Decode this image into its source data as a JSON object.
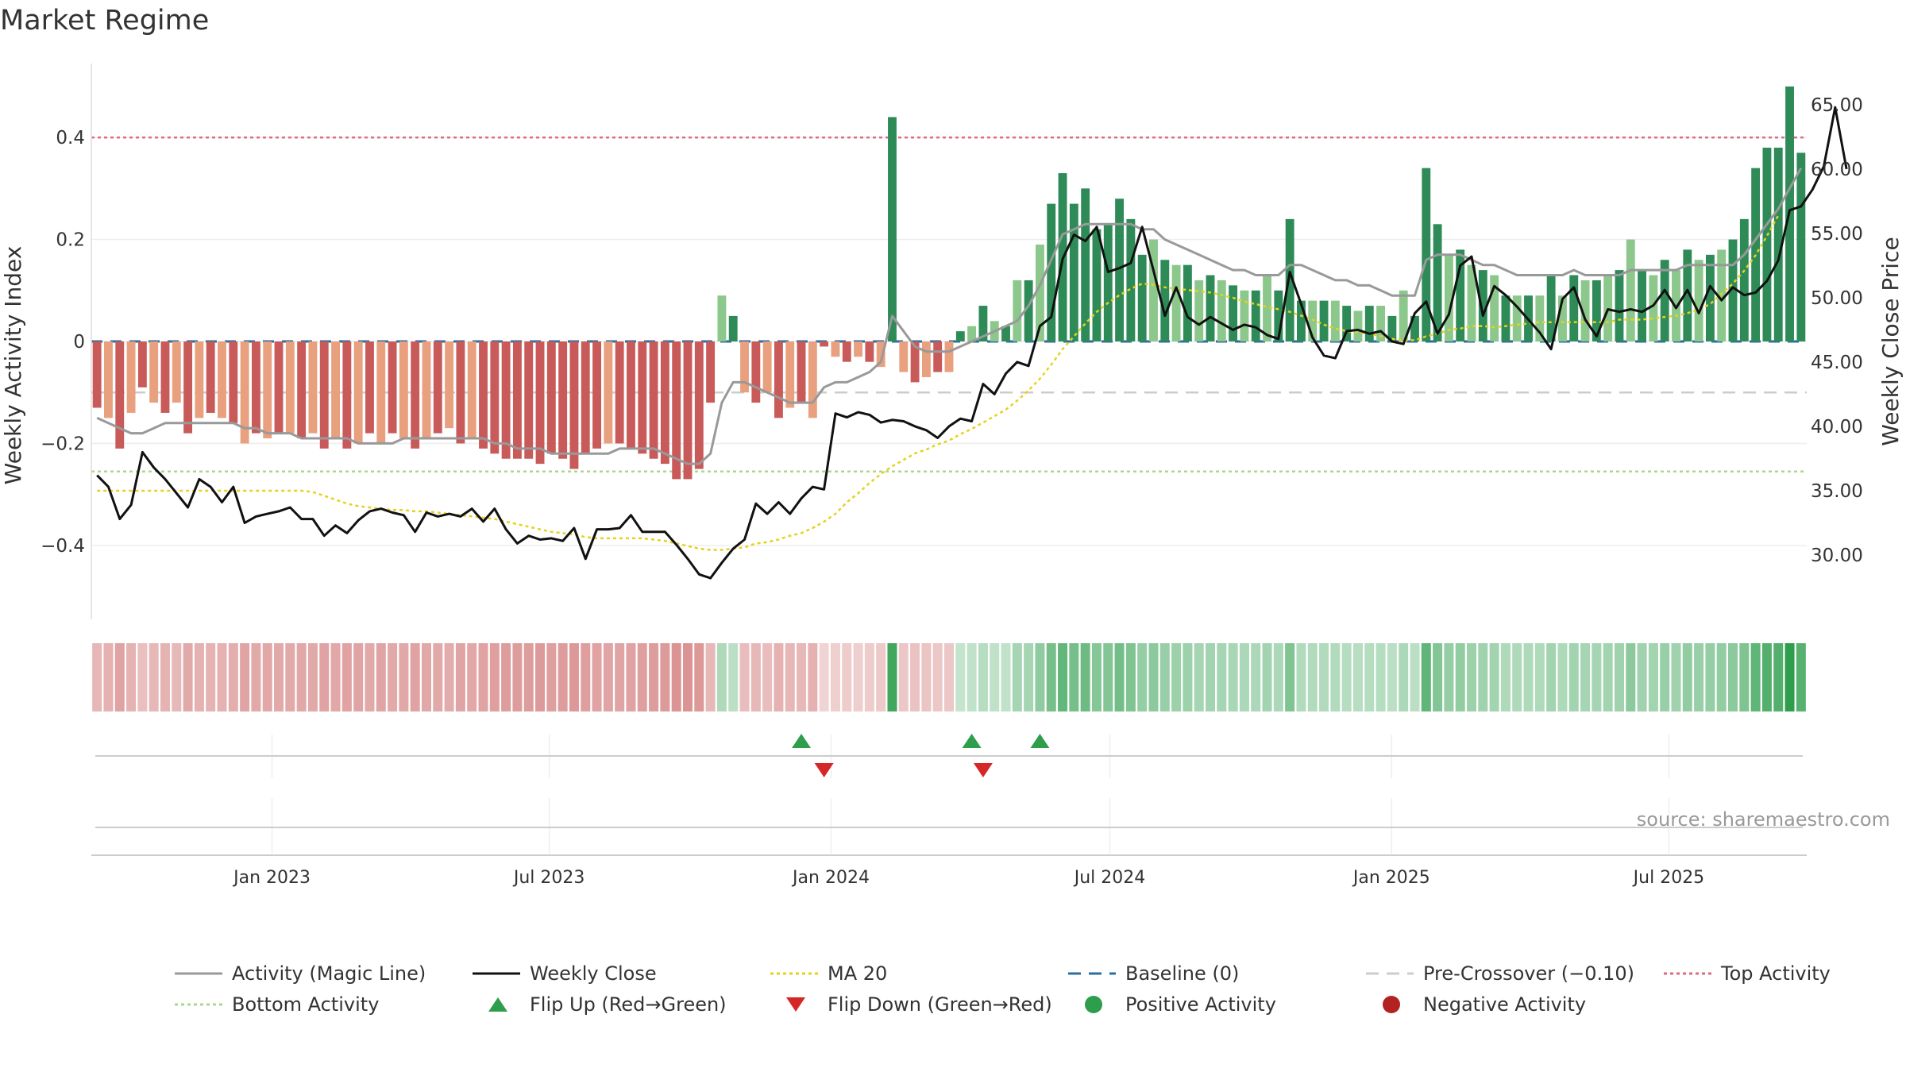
{
  "chart_data": {
    "type": "bar",
    "title": "Market Regime",
    "source": "source: sharemaestro.com",
    "ylabel": "Weekly Activity Index",
    "y2label": "Weekly Close Price",
    "ylim": [
      -0.545,
      0.545
    ],
    "y2lim": [
      25.0,
      68.2
    ],
    "yticks": [
      "−0.4",
      "−0.2",
      "0",
      "0.2",
      "0.4"
    ],
    "yticks_values": [
      -0.4,
      -0.2,
      0,
      0.2,
      0.4
    ],
    "y2ticks": [
      "30.00",
      "35.00",
      "40.00",
      "45.00",
      "50.00",
      "55.00",
      "60.00",
      "65.00"
    ],
    "y2ticks_values": [
      30,
      35,
      40,
      45,
      50,
      55,
      60,
      65
    ],
    "x_start": "2022-09-05",
    "x_end": "2025-09-29",
    "xticks": [
      {
        "date": "2023-01-01",
        "label": "Jan 2023"
      },
      {
        "date": "2023-07-01",
        "label": "Jul 2023"
      },
      {
        "date": "2024-01-01",
        "label": "Jan 2024"
      },
      {
        "date": "2024-07-01",
        "label": "Jul 2024"
      },
      {
        "date": "2025-01-01",
        "label": "Jan 2025"
      },
      {
        "date": "2025-07-01",
        "label": "Jul 2025"
      }
    ],
    "reference_lines": {
      "baseline": 0,
      "pre_crossover": -0.1,
      "top": 0.4,
      "bottom": -0.255
    },
    "activity": [
      -0.13,
      -0.15,
      -0.21,
      -0.14,
      -0.09,
      -0.12,
      -0.14,
      -0.12,
      -0.18,
      -0.15,
      -0.14,
      -0.15,
      -0.16,
      -0.2,
      -0.18,
      -0.19,
      -0.18,
      -0.18,
      -0.19,
      -0.18,
      -0.21,
      -0.19,
      -0.21,
      -0.2,
      -0.18,
      -0.2,
      -0.18,
      -0.19,
      -0.21,
      -0.19,
      -0.18,
      -0.17,
      -0.2,
      -0.19,
      -0.21,
      -0.22,
      -0.23,
      -0.23,
      -0.23,
      -0.24,
      -0.22,
      -0.23,
      -0.25,
      -0.22,
      -0.21,
      -0.2,
      -0.2,
      -0.21,
      -0.22,
      -0.23,
      -0.24,
      -0.27,
      -0.27,
      -0.25,
      -0.12,
      0.09,
      0.05,
      -0.1,
      -0.12,
      -0.1,
      -0.15,
      -0.13,
      -0.12,
      -0.15,
      -0.01,
      -0.03,
      -0.04,
      -0.03,
      -0.04,
      -0.05,
      0.44,
      -0.06,
      -0.08,
      -0.07,
      -0.06,
      -0.06,
      0.02,
      0.03,
      0.07,
      0.04,
      0.03,
      0.12,
      0.12,
      0.19,
      0.27,
      0.33,
      0.27,
      0.3,
      0.22,
      0.23,
      0.28,
      0.24,
      0.17,
      0.2,
      0.16,
      0.15,
      0.15,
      0.12,
      0.13,
      0.12,
      0.11,
      0.1,
      0.1,
      0.13,
      0.1,
      0.24,
      0.08,
      0.08,
      0.08,
      0.08,
      0.07,
      0.06,
      0.07,
      0.07,
      0.05,
      0.1,
      0.05,
      0.34,
      0.23,
      0.17,
      0.18,
      0.15,
      0.14,
      0.13,
      0.09,
      0.09,
      0.09,
      0.09,
      0.13,
      0.09,
      0.13,
      0.12,
      0.12,
      0.13,
      0.14,
      0.2,
      0.14,
      0.13,
      0.16,
      0.14,
      0.18,
      0.16,
      0.17,
      0.18,
      0.2,
      0.24,
      0.34,
      0.38,
      0.38,
      0.5,
      0.37
    ],
    "close": [
      36.2,
      35.3,
      32.8,
      33.9,
      38.0,
      36.8,
      35.9,
      34.8,
      33.7,
      35.9,
      35.3,
      34.1,
      35.3,
      32.5,
      33.0,
      33.2,
      33.4,
      33.7,
      32.8,
      32.8,
      31.5,
      32.3,
      31.7,
      32.7,
      33.4,
      33.6,
      33.3,
      33.1,
      31.8,
      33.3,
      33.0,
      33.2,
      33.0,
      33.6,
      32.6,
      33.6,
      32.0,
      30.9,
      31.5,
      31.2,
      31.3,
      31.1,
      32.1,
      29.7,
      32.0,
      32.0,
      32.1,
      33.1,
      31.8,
      31.8,
      31.8,
      30.8,
      29.7,
      28.5,
      28.2,
      29.4,
      30.5,
      31.2,
      34.0,
      33.2,
      34.1,
      33.2,
      34.4,
      35.3,
      35.1,
      41.0,
      40.7,
      41.1,
      40.9,
      40.3,
      40.5,
      40.4,
      40.0,
      39.7,
      39.1,
      40.0,
      40.6,
      40.4,
      43.3,
      42.5,
      44.1,
      45.0,
      44.7,
      47.8,
      48.5,
      53.0,
      54.9,
      54.4,
      55.5,
      52.0,
      52.3,
      52.7,
      55.5,
      52.1,
      48.6,
      50.8,
      48.5,
      47.9,
      48.5,
      48.0,
      47.5,
      47.9,
      47.7,
      47.1,
      46.8,
      52.0,
      49.5,
      46.9,
      45.5,
      45.3,
      47.4,
      47.5,
      47.2,
      47.4,
      46.6,
      46.4,
      48.8,
      49.7,
      47.2,
      48.7,
      52.5,
      53.2,
      48.6,
      50.9,
      50.2,
      49.3,
      48.3,
      47.3,
      46.0,
      49.9,
      50.8,
      48.3,
      47.0,
      49.1,
      48.9,
      49.1,
      48.9,
      49.4,
      50.6,
      49.2,
      50.6,
      48.8,
      50.9,
      49.8,
      50.8,
      50.2,
      50.4,
      51.3,
      52.9,
      56.8,
      57.1,
      58.4,
      60.2,
      64.8,
      60.0
    ],
    "magic_line": [
      -0.15,
      -0.16,
      -0.17,
      -0.18,
      -0.18,
      -0.17,
      -0.16,
      -0.16,
      -0.16,
      -0.16,
      -0.16,
      -0.16,
      -0.16,
      -0.17,
      -0.17,
      -0.18,
      -0.18,
      -0.18,
      -0.19,
      -0.19,
      -0.19,
      -0.19,
      -0.19,
      -0.2,
      -0.2,
      -0.2,
      -0.2,
      -0.19,
      -0.19,
      -0.19,
      -0.19,
      -0.19,
      -0.19,
      -0.19,
      -0.19,
      -0.2,
      -0.2,
      -0.21,
      -0.21,
      -0.21,
      -0.22,
      -0.22,
      -0.22,
      -0.22,
      -0.22,
      -0.22,
      -0.21,
      -0.21,
      -0.21,
      -0.21,
      -0.22,
      -0.23,
      -0.24,
      -0.24,
      -0.22,
      -0.12,
      -0.08,
      -0.08,
      -0.09,
      -0.1,
      -0.11,
      -0.12,
      -0.12,
      -0.12,
      -0.09,
      -0.08,
      -0.08,
      -0.07,
      -0.06,
      -0.04,
      0.05,
      0.02,
      -0.01,
      -0.02,
      -0.02,
      -0.02,
      -0.01,
      0.0,
      0.01,
      0.02,
      0.03,
      0.04,
      0.07,
      0.11,
      0.16,
      0.21,
      0.22,
      0.23,
      0.23,
      0.23,
      0.23,
      0.23,
      0.22,
      0.22,
      0.2,
      0.19,
      0.18,
      0.17,
      0.16,
      0.15,
      0.14,
      0.14,
      0.13,
      0.13,
      0.13,
      0.15,
      0.15,
      0.14,
      0.13,
      0.12,
      0.12,
      0.11,
      0.11,
      0.1,
      0.09,
      0.09,
      0.09,
      0.16,
      0.17,
      0.17,
      0.17,
      0.16,
      0.15,
      0.15,
      0.14,
      0.13,
      0.13,
      0.13,
      0.13,
      0.13,
      0.14,
      0.13,
      0.13,
      0.13,
      0.13,
      0.14,
      0.14,
      0.14,
      0.14,
      0.14,
      0.15,
      0.15,
      0.15,
      0.15,
      0.15,
      0.17,
      0.2,
      0.23,
      0.26,
      0.3,
      0.34
    ],
    "ma20": [
      35.0,
      35.0,
      35.0,
      35.0,
      35.0,
      35.0,
      35.0,
      35.0,
      35.0,
      35.0,
      35.0,
      35.0,
      35.0,
      35.0,
      35.0,
      35.0,
      35.0,
      35.0,
      35.0,
      34.9,
      34.6,
      34.3,
      34.0,
      33.8,
      33.7,
      33.6,
      33.5,
      33.5,
      33.4,
      33.4,
      33.3,
      33.2,
      33.1,
      33.0,
      32.9,
      32.8,
      32.6,
      32.4,
      32.2,
      32.0,
      31.8,
      31.7,
      31.6,
      31.4,
      31.3,
      31.3,
      31.3,
      31.3,
      31.3,
      31.2,
      31.1,
      30.9,
      30.7,
      30.5,
      30.4,
      30.4,
      30.5,
      30.6,
      30.9,
      31.0,
      31.2,
      31.5,
      31.7,
      32.1,
      32.6,
      33.2,
      34.1,
      34.8,
      35.6,
      36.3,
      36.9,
      37.4,
      37.9,
      38.2,
      38.6,
      38.9,
      39.4,
      39.8,
      40.3,
      40.8,
      41.3,
      42.0,
      42.8,
      43.7,
      44.8,
      46.0,
      47.0,
      48.0,
      48.9,
      49.6,
      50.2,
      50.7,
      51.1,
      51.0,
      50.8,
      50.7,
      50.6,
      50.5,
      50.4,
      50.2,
      50.0,
      49.7,
      49.5,
      49.3,
      49.1,
      48.9,
      48.6,
      48.3,
      47.9,
      47.6,
      47.4,
      47.3,
      47.2,
      47.0,
      46.8,
      46.7,
      46.7,
      47.0,
      47.2,
      47.5,
      47.6,
      47.8,
      47.8,
      47.7,
      47.8,
      47.9,
      48.0,
      48.1,
      48.1,
      48.1,
      48.1,
      48.1,
      48.1,
      48.1,
      48.3,
      48.3,
      48.3,
      48.4,
      48.5,
      48.6,
      48.8,
      49.1,
      49.5,
      50.3,
      51.1,
      52.1,
      53.3,
      54.8,
      56.4
    ],
    "flip_up_weeks": [
      62,
      77,
      83
    ],
    "flip_down_weeks": [
      64,
      78
    ]
  },
  "legend": [
    {
      "label": "Activity (Magic Line)",
      "kind": "line",
      "color": "#999999"
    },
    {
      "label": "Weekly Close",
      "kind": "line",
      "color": "#111111"
    },
    {
      "label": "MA 20",
      "kind": "dotted",
      "color": "#e5d21e"
    },
    {
      "label": "Baseline (0)",
      "kind": "dashed",
      "color": "#2a6fa0"
    },
    {
      "label": "Pre-Crossover (−0.10)",
      "kind": "dashed",
      "color": "#cccccc"
    },
    {
      "label": "Top Activity",
      "kind": "dotted",
      "color": "#e06a7e"
    },
    {
      "label": "Bottom Activity",
      "kind": "dotted",
      "color": "#a9d98b"
    },
    {
      "label": "Flip Up (Red→Green)",
      "kind": "triangle-up",
      "color": "#2e9e4d"
    },
    {
      "label": "Flip Down (Green→Red)",
      "kind": "triangle-down",
      "color": "#d62728"
    },
    {
      "label": "Positive Activity",
      "kind": "circle",
      "color": "#2e9e4d"
    },
    {
      "label": "Negative Activity",
      "kind": "circle",
      "color": "#b22222"
    }
  ],
  "colors": {
    "pos_strong": "#2e8b57",
    "pos_light": "#8cc78c",
    "neg_strong": "#c85a5a",
    "neg_light": "#e8a07e",
    "close": "#111111",
    "magic": "#999999",
    "ma20": "#e5d21e",
    "baseline": "#2a6fa0",
    "pre_crossover": "#cccccc",
    "top": "#e06a7e",
    "bottom": "#a9d98b"
  }
}
